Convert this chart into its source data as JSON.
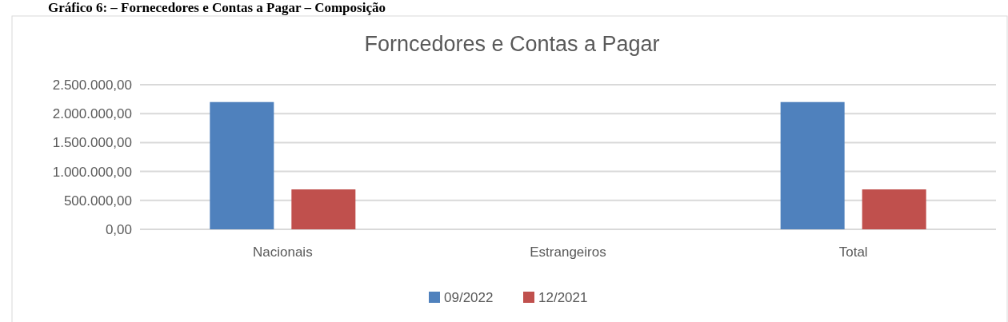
{
  "chart_data": {
    "type": "bar",
    "title": "Forncedores e Contas a Pagar",
    "annotations": [
      "Gráfico 6: – Fornecedores e Contas a Pagar – Composição"
    ],
    "categories": [
      "Nacionais",
      "Estrangeiros",
      "Total"
    ],
    "series": [
      {
        "name": "09/2022",
        "color": "#4f81bd",
        "values": [
          2200000,
          0,
          2200000
        ]
      },
      {
        "name": "12/2021",
        "color": "#c0504d",
        "values": [
          690000,
          0,
          690000
        ]
      }
    ],
    "ylim": [
      0,
      2500000
    ],
    "yticks": [
      {
        "value": 0,
        "label": "0,00"
      },
      {
        "value": 500000,
        "label": "500.000,00"
      },
      {
        "value": 1000000,
        "label": "1.000.000,00"
      },
      {
        "value": 1500000,
        "label": "1.500.000,00"
      },
      {
        "value": 2000000,
        "label": "2.000.000,00"
      },
      {
        "value": 2500000,
        "label": "2.500.000,00"
      }
    ],
    "grid": "y",
    "legend": "bottom"
  }
}
